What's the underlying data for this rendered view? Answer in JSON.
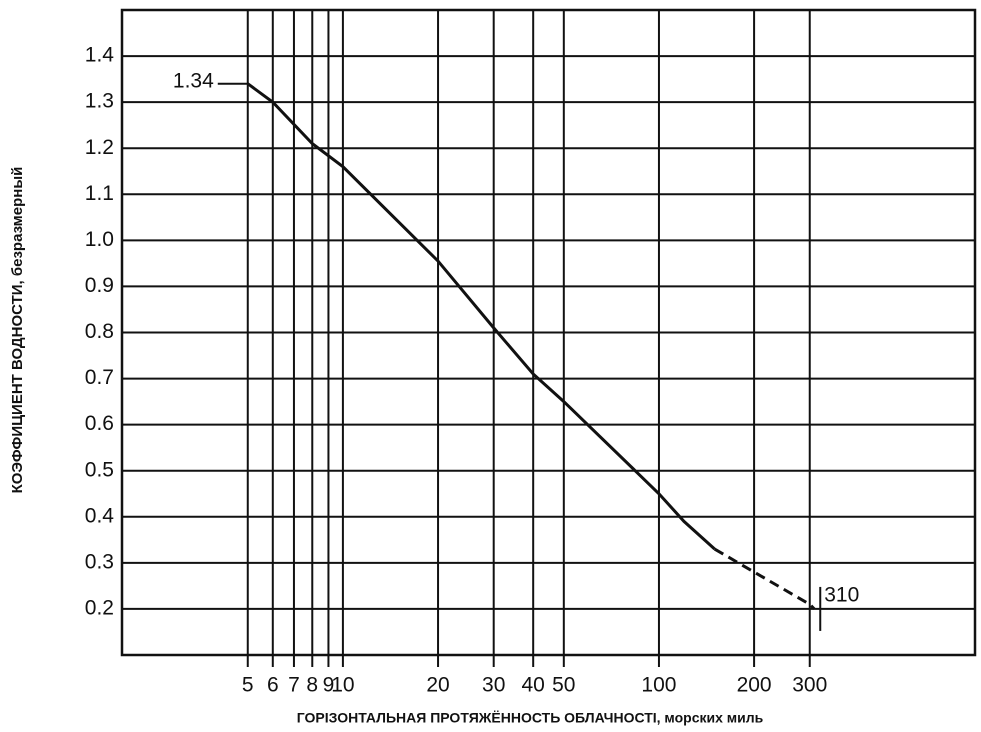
{
  "chart_data": {
    "type": "line",
    "x_label": "ГОРIЗОНТАЛЬНАЯ ПРОТЯЖЁННОСТЬ ОБЛАЧНОСТI, морских миль",
    "y_label": "КОЭФФИЦИЕНТ ВОДНОСТИ, безразмерный",
    "x_scale": "log",
    "xlim": [
      2,
      1000
    ],
    "xticks": [
      5,
      6,
      7,
      8,
      9,
      10,
      20,
      30,
      40,
      50,
      100,
      200,
      300
    ],
    "ylim": [
      0.1,
      1.5
    ],
    "yticks": [
      0.2,
      0.3,
      0.4,
      0.5,
      0.6,
      0.7,
      0.8,
      0.9,
      {
        "value": 1,
        "label": "1.0"
      },
      1.1,
      1.2,
      1.3,
      1.4
    ],
    "grid": true,
    "color": "#111111",
    "series": [
      {
        "dashed": false,
        "x": [
          5,
          6,
          8,
          10,
          20,
          30,
          40,
          50,
          100,
          120,
          150
        ],
        "values": [
          1.34,
          1.3,
          1.21,
          1.16,
          0.955,
          0.81,
          0.71,
          0.65,
          0.45,
          0.39,
          0.33
        ]
      },
      {
        "dashed": true,
        "x": [
          150,
          200,
          300,
          310
        ],
        "values": [
          0.33,
          0.28,
          0.21,
          0.2
        ]
      }
    ],
    "annotations": [
      {
        "text": "1.34",
        "x": 5,
        "y": 1.34
      },
      {
        "text": "310",
        "x": 310,
        "y": 0.2
      }
    ]
  }
}
